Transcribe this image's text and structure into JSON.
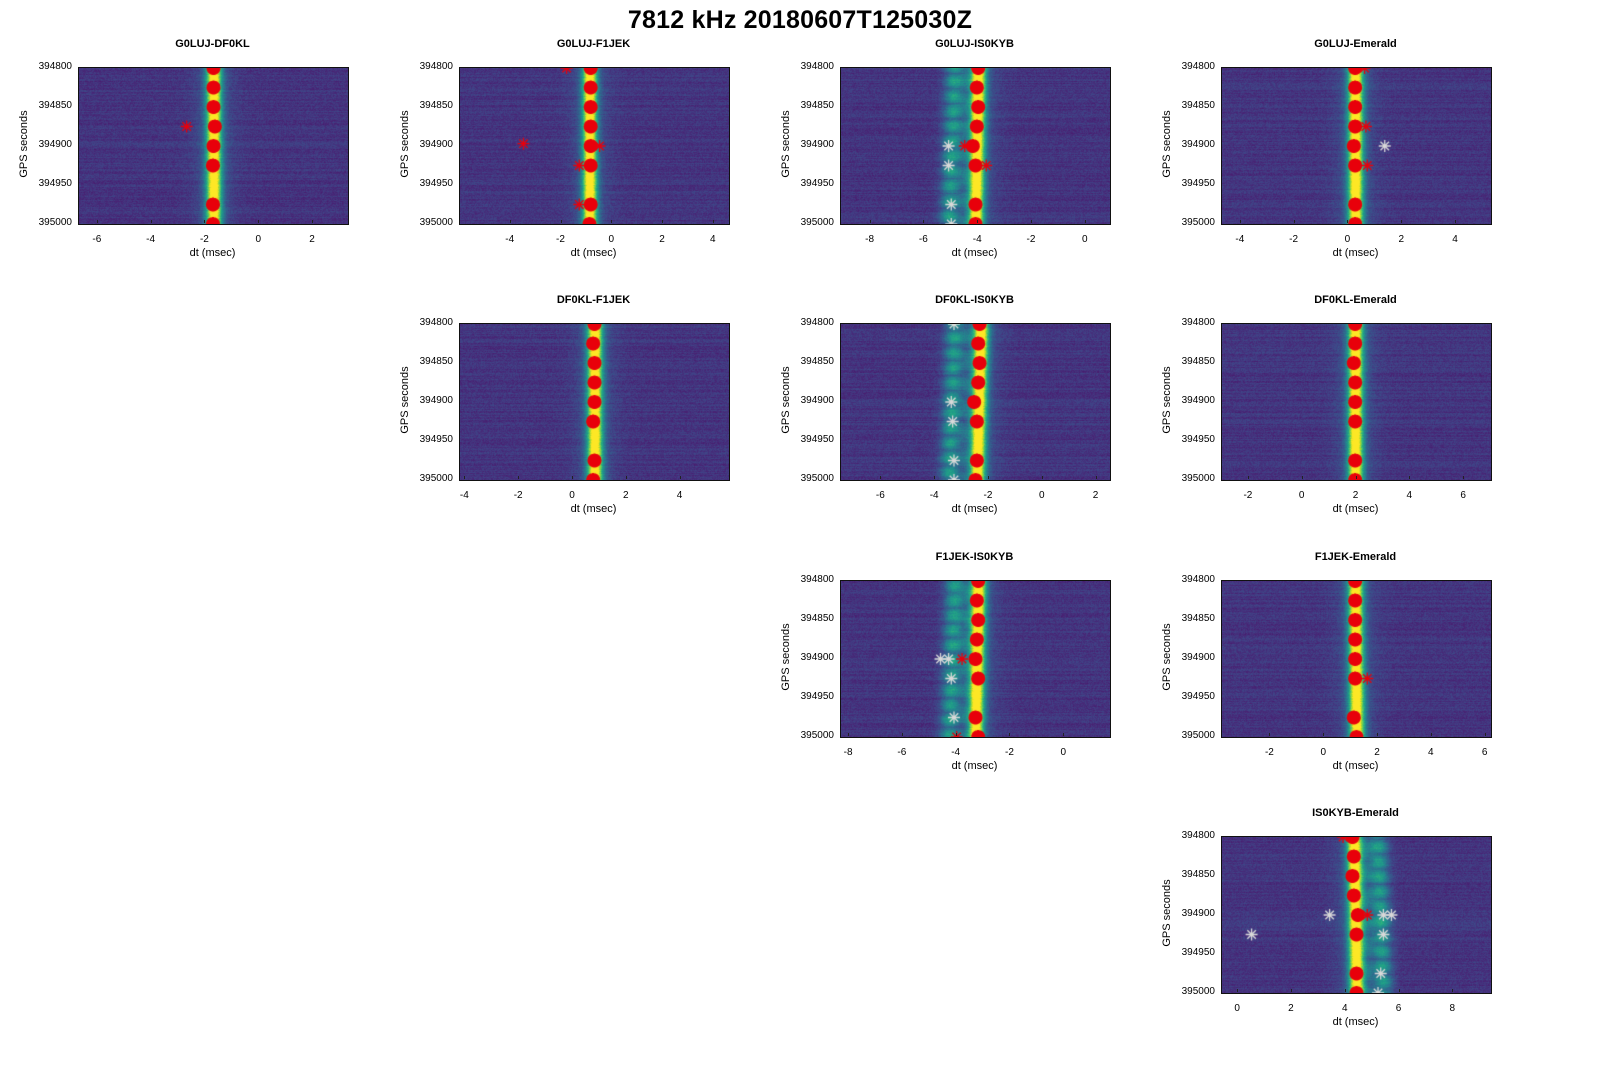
{
  "figure": {
    "title": "7812 kHz 20180607T125030Z",
    "xlabel": "dt (msec)",
    "ylabel": "GPS seconds",
    "colormap": "viridis",
    "marker_colors": {
      "primary": "#e8000b",
      "secondary": "#d9d9d9"
    }
  },
  "chart_data": [
    {
      "type": "heatmap",
      "title": "G0LUJ-DF0KL",
      "row": 0,
      "col": 0,
      "xlabel": "dt (msec)",
      "ylabel": "GPS seconds",
      "xlim": [
        -6.7,
        3.3
      ],
      "ylim": [
        395000,
        394800
      ],
      "xticks": [
        -6,
        -4,
        -2,
        0,
        2
      ],
      "yticks": [
        394800,
        394850,
        394900,
        394950,
        395000
      ],
      "ridge": [
        {
          "t": 394800,
          "dt": -1.7
        },
        {
          "t": 395000,
          "dt": -1.7
        }
      ],
      "ghost": [],
      "red_markers": [
        {
          "t": 394800,
          "dt": -1.7
        },
        {
          "t": 394825,
          "dt": -1.7
        },
        {
          "t": 394850,
          "dt": -1.7
        },
        {
          "t": 394875,
          "dt": -1.65
        },
        {
          "t": 394900,
          "dt": -1.7
        },
        {
          "t": 394925,
          "dt": -1.72
        },
        {
          "t": 394975,
          "dt": -1.72
        },
        {
          "t": 395000,
          "dt": -1.72
        }
      ],
      "red_outliers": [
        {
          "t": 394875,
          "dt": -2.7
        }
      ],
      "white_markers": []
    },
    {
      "type": "heatmap",
      "title": "G0LUJ-F1JEK",
      "row": 0,
      "col": 1,
      "xlabel": "dt (msec)",
      "ylabel": "GPS seconds",
      "xlim": [
        -6.0,
        4.6
      ],
      "ylim": [
        395000,
        394800
      ],
      "xticks": [
        -4,
        -2,
        0,
        2,
        4
      ],
      "yticks": [
        394800,
        394850,
        394900,
        394950,
        395000
      ],
      "ridge": [
        {
          "t": 394800,
          "dt": -0.9
        },
        {
          "t": 395000,
          "dt": -0.9
        }
      ],
      "ghost": [],
      "red_markers": [
        {
          "t": 394800,
          "dt": -0.85
        },
        {
          "t": 394825,
          "dt": -0.85
        },
        {
          "t": 394850,
          "dt": -0.85
        },
        {
          "t": 394875,
          "dt": -0.85
        },
        {
          "t": 394900,
          "dt": -0.85
        },
        {
          "t": 394925,
          "dt": -0.85
        },
        {
          "t": 394975,
          "dt": -0.85
        },
        {
          "t": 395000,
          "dt": -0.9
        }
      ],
      "red_outliers": [
        {
          "t": 394800,
          "dt": -1.8
        },
        {
          "t": 394897,
          "dt": -3.5
        },
        {
          "t": 394925,
          "dt": -1.3
        },
        {
          "t": 394975,
          "dt": -1.3
        },
        {
          "t": 394900,
          "dt": -0.5
        }
      ],
      "white_markers": []
    },
    {
      "type": "heatmap",
      "title": "G0LUJ-IS0KYB",
      "row": 0,
      "col": 2,
      "xlabel": "dt (msec)",
      "ylabel": "GPS seconds",
      "xlim": [
        -9.1,
        0.9
      ],
      "ylim": [
        395000,
        394800
      ],
      "xticks": [
        -8,
        -6,
        -4,
        -2,
        0
      ],
      "yticks": [
        394800,
        394850,
        394900,
        394950,
        395000
      ],
      "ridge": [
        {
          "t": 394800,
          "dt": -4.0
        },
        {
          "t": 395000,
          "dt": -4.1
        }
      ],
      "ghost": [
        {
          "t": 394800,
          "dt": -4.9
        },
        {
          "t": 395000,
          "dt": -5.1
        }
      ],
      "red_markers": [
        {
          "t": 394800,
          "dt": -4.0
        },
        {
          "t": 394825,
          "dt": -4.05
        },
        {
          "t": 394850,
          "dt": -4.0
        },
        {
          "t": 394875,
          "dt": -4.05
        },
        {
          "t": 394900,
          "dt": -4.2
        },
        {
          "t": 394925,
          "dt": -4.1
        },
        {
          "t": 394975,
          "dt": -4.1
        },
        {
          "t": 395000,
          "dt": -4.1
        }
      ],
      "red_outliers": [
        {
          "t": 394900,
          "dt": -4.5
        },
        {
          "t": 394925,
          "dt": -3.7
        }
      ],
      "white_markers": [
        {
          "t": 394900,
          "dt": -5.1
        },
        {
          "t": 394925,
          "dt": -5.1
        },
        {
          "t": 394975,
          "dt": -5.0
        },
        {
          "t": 395000,
          "dt": -5.0
        }
      ]
    },
    {
      "type": "heatmap",
      "title": "G0LUJ-Emerald",
      "row": 0,
      "col": 3,
      "xlabel": "dt (msec)",
      "ylabel": "GPS seconds",
      "xlim": [
        -4.7,
        5.3
      ],
      "ylim": [
        395000,
        394800
      ],
      "xticks": [
        -4,
        -2,
        0,
        2,
        4
      ],
      "yticks": [
        394800,
        394850,
        394900,
        394950,
        395000
      ],
      "ridge": [
        {
          "t": 394800,
          "dt": 0.25
        },
        {
          "t": 395000,
          "dt": 0.25
        }
      ],
      "ghost": [],
      "red_markers": [
        {
          "t": 394800,
          "dt": 0.25
        },
        {
          "t": 394825,
          "dt": 0.25
        },
        {
          "t": 394850,
          "dt": 0.25
        },
        {
          "t": 394875,
          "dt": 0.25
        },
        {
          "t": 394900,
          "dt": 0.2
        },
        {
          "t": 394925,
          "dt": 0.25
        },
        {
          "t": 394975,
          "dt": 0.25
        },
        {
          "t": 395000,
          "dt": 0.25
        }
      ],
      "red_outliers": [
        {
          "t": 394800,
          "dt": 0.6
        },
        {
          "t": 394875,
          "dt": 0.65
        },
        {
          "t": 394925,
          "dt": 0.7
        }
      ],
      "white_markers": [
        {
          "t": 394900,
          "dt": 1.35
        }
      ]
    },
    {
      "type": "heatmap",
      "title": "DF0KL-F1JEK",
      "row": 1,
      "col": 1,
      "xlabel": "dt (msec)",
      "ylabel": "GPS seconds",
      "xlim": [
        -4.2,
        5.8
      ],
      "ylim": [
        395000,
        394800
      ],
      "xticks": [
        -4,
        -2,
        0,
        2,
        4
      ],
      "yticks": [
        394800,
        394850,
        394900,
        394950,
        395000
      ],
      "ridge": [
        {
          "t": 394800,
          "dt": 0.8
        },
        {
          "t": 395000,
          "dt": 0.8
        }
      ],
      "ghost": [],
      "red_markers": [
        {
          "t": 394800,
          "dt": 0.8
        },
        {
          "t": 394825,
          "dt": 0.75
        },
        {
          "t": 394850,
          "dt": 0.8
        },
        {
          "t": 394875,
          "dt": 0.8
        },
        {
          "t": 394900,
          "dt": 0.8
        },
        {
          "t": 394925,
          "dt": 0.75
        },
        {
          "t": 394975,
          "dt": 0.8
        },
        {
          "t": 395000,
          "dt": 0.75
        }
      ],
      "red_outliers": [],
      "white_markers": []
    },
    {
      "type": "heatmap",
      "title": "DF0KL-IS0KYB",
      "row": 1,
      "col": 2,
      "xlabel": "dt (msec)",
      "ylabel": "GPS seconds",
      "xlim": [
        -7.5,
        2.5
      ],
      "ylim": [
        395000,
        394800
      ],
      "xticks": [
        -6,
        -4,
        -2,
        0,
        2
      ],
      "yticks": [
        394800,
        394850,
        394900,
        394950,
        395000
      ],
      "ridge": [
        {
          "t": 394800,
          "dt": -2.3
        },
        {
          "t": 395000,
          "dt": -2.45
        }
      ],
      "ghost": [
        {
          "t": 394800,
          "dt": -3.3
        },
        {
          "t": 395000,
          "dt": -3.5
        }
      ],
      "red_markers": [
        {
          "t": 394800,
          "dt": -2.35
        },
        {
          "t": 394825,
          "dt": -2.4
        },
        {
          "t": 394850,
          "dt": -2.35
        },
        {
          "t": 394875,
          "dt": -2.4
        },
        {
          "t": 394900,
          "dt": -2.55
        },
        {
          "t": 394925,
          "dt": -2.45
        },
        {
          "t": 394975,
          "dt": -2.45
        },
        {
          "t": 395000,
          "dt": -2.5
        }
      ],
      "red_outliers": [],
      "white_markers": [
        {
          "t": 394800,
          "dt": -3.3
        },
        {
          "t": 394900,
          "dt": -3.4
        },
        {
          "t": 394925,
          "dt": -3.35
        },
        {
          "t": 394975,
          "dt": -3.3
        },
        {
          "t": 395000,
          "dt": -3.3
        }
      ]
    },
    {
      "type": "heatmap",
      "title": "DF0KL-Emerald",
      "row": 1,
      "col": 3,
      "xlabel": "dt (msec)",
      "ylabel": "GPS seconds",
      "xlim": [
        -3.0,
        7.0
      ],
      "ylim": [
        395000,
        394800
      ],
      "xticks": [
        -2,
        0,
        2,
        4,
        6
      ],
      "yticks": [
        394800,
        394850,
        394900,
        394950,
        395000
      ],
      "ridge": [
        {
          "t": 394800,
          "dt": 1.95
        },
        {
          "t": 395000,
          "dt": 1.95
        }
      ],
      "ghost": [],
      "red_markers": [
        {
          "t": 394800,
          "dt": 1.95
        },
        {
          "t": 394825,
          "dt": 1.95
        },
        {
          "t": 394850,
          "dt": 1.9
        },
        {
          "t": 394875,
          "dt": 1.95
        },
        {
          "t": 394900,
          "dt": 1.95
        },
        {
          "t": 394925,
          "dt": 1.95
        },
        {
          "t": 394975,
          "dt": 1.95
        },
        {
          "t": 395000,
          "dt": 1.95
        }
      ],
      "red_outliers": [],
      "white_markers": []
    },
    {
      "type": "heatmap",
      "title": "F1JEK-IS0KYB",
      "row": 2,
      "col": 2,
      "xlabel": "dt (msec)",
      "ylabel": "GPS seconds",
      "xlim": [
        -8.3,
        1.7
      ],
      "ylim": [
        395000,
        394800
      ],
      "xticks": [
        -8,
        -6,
        -4,
        -2,
        0
      ],
      "yticks": [
        394800,
        394850,
        394900,
        394950,
        395000
      ],
      "ridge": [
        {
          "t": 394800,
          "dt": -3.2
        },
        {
          "t": 395000,
          "dt": -3.3
        }
      ],
      "ghost": [
        {
          "t": 394800,
          "dt": -4.1
        },
        {
          "t": 395000,
          "dt": -4.3
        }
      ],
      "red_markers": [
        {
          "t": 394800,
          "dt": -3.2
        },
        {
          "t": 394825,
          "dt": -3.25
        },
        {
          "t": 394850,
          "dt": -3.2
        },
        {
          "t": 394875,
          "dt": -3.25
        },
        {
          "t": 394900,
          "dt": -3.3
        },
        {
          "t": 394925,
          "dt": -3.2
        },
        {
          "t": 394975,
          "dt": -3.3
        },
        {
          "t": 395000,
          "dt": -3.2
        }
      ],
      "red_outliers": [
        {
          "t": 394900,
          "dt": -3.8
        },
        {
          "t": 395000,
          "dt": -4.0
        }
      ],
      "white_markers": [
        {
          "t": 394900,
          "dt": -4.6
        },
        {
          "t": 394900,
          "dt": -4.3
        },
        {
          "t": 394925,
          "dt": -4.2
        },
        {
          "t": 394975,
          "dt": -4.1
        }
      ]
    },
    {
      "type": "heatmap",
      "title": "F1JEK-Emerald",
      "row": 2,
      "col": 3,
      "xlabel": "dt (msec)",
      "ylabel": "GPS seconds",
      "xlim": [
        -3.8,
        6.2
      ],
      "ylim": [
        395000,
        394800
      ],
      "xticks": [
        -2,
        0,
        2,
        4,
        6
      ],
      "yticks": [
        394800,
        394850,
        394900,
        394950,
        395000
      ],
      "ridge": [
        {
          "t": 394800,
          "dt": 1.15
        },
        {
          "t": 395000,
          "dt": 1.2
        }
      ],
      "ghost": [],
      "red_markers": [
        {
          "t": 394800,
          "dt": 1.15
        },
        {
          "t": 394825,
          "dt": 1.15
        },
        {
          "t": 394850,
          "dt": 1.15
        },
        {
          "t": 394875,
          "dt": 1.15
        },
        {
          "t": 394900,
          "dt": 1.15
        },
        {
          "t": 394925,
          "dt": 1.15
        },
        {
          "t": 394975,
          "dt": 1.1
        },
        {
          "t": 395000,
          "dt": 1.2
        }
      ],
      "red_outliers": [
        {
          "t": 394925,
          "dt": 1.6
        }
      ],
      "white_markers": []
    },
    {
      "type": "heatmap",
      "title": "IS0KYB-Emerald",
      "row": 3,
      "col": 3,
      "xlabel": "dt (msec)",
      "ylabel": "GPS seconds",
      "xlim": [
        -0.6,
        9.4
      ],
      "ylim": [
        395000,
        394800
      ],
      "xticks": [
        0,
        2,
        4,
        6,
        8
      ],
      "yticks": [
        394800,
        394850,
        394900,
        394950,
        395000
      ],
      "ridge": [
        {
          "t": 394800,
          "dt": 4.3
        },
        {
          "t": 395000,
          "dt": 4.4
        }
      ],
      "ghost": [
        {
          "t": 394800,
          "dt": 5.2
        },
        {
          "t": 395000,
          "dt": 5.4
        }
      ],
      "red_markers": [
        {
          "t": 394800,
          "dt": 4.25
        },
        {
          "t": 394825,
          "dt": 4.3
        },
        {
          "t": 394850,
          "dt": 4.25
        },
        {
          "t": 394875,
          "dt": 4.3
        },
        {
          "t": 394900,
          "dt": 4.45
        },
        {
          "t": 394925,
          "dt": 4.4
        },
        {
          "t": 394975,
          "dt": 4.4
        },
        {
          "t": 395000,
          "dt": 4.4
        }
      ],
      "red_outliers": [
        {
          "t": 394800,
          "dt": 3.9
        },
        {
          "t": 394900,
          "dt": 4.8
        }
      ],
      "white_markers": [
        {
          "t": 394900,
          "dt": 3.4
        },
        {
          "t": 394925,
          "dt": 0.5
        },
        {
          "t": 394900,
          "dt": 5.4
        },
        {
          "t": 394900,
          "dt": 5.7
        },
        {
          "t": 394925,
          "dt": 5.4
        },
        {
          "t": 394975,
          "dt": 5.3
        },
        {
          "t": 395000,
          "dt": 5.2
        }
      ]
    }
  ]
}
